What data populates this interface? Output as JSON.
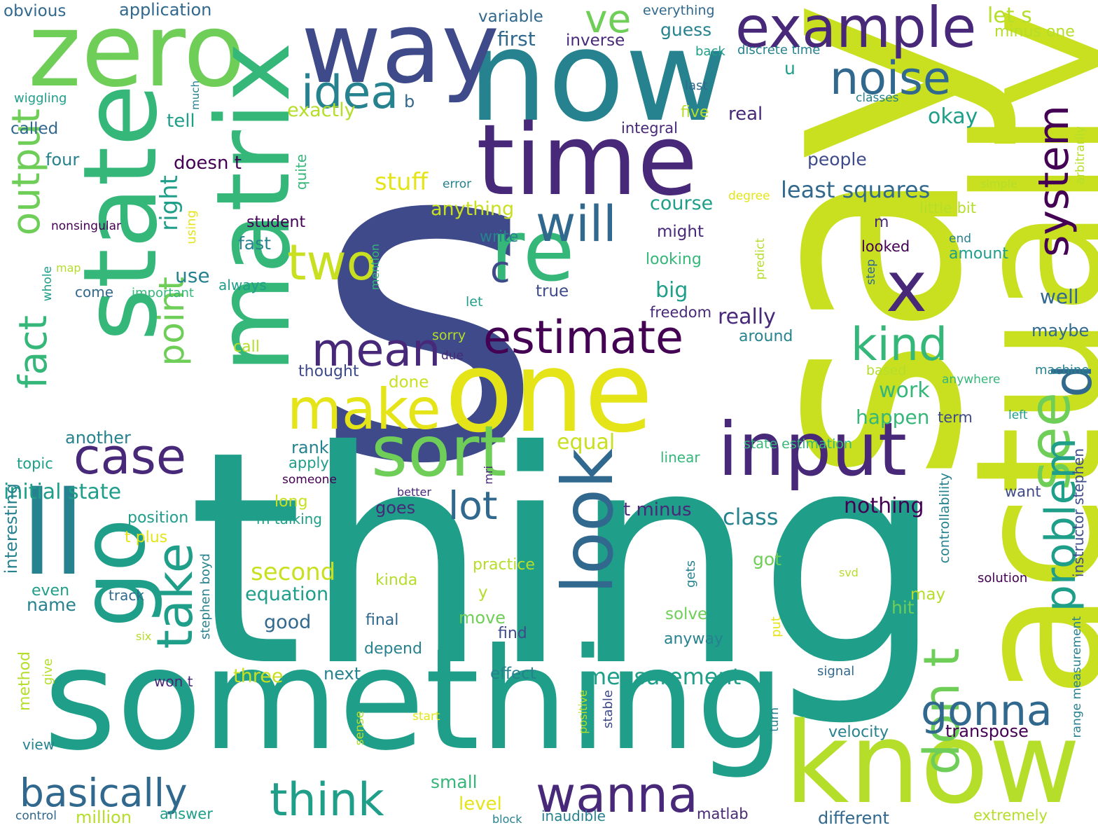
{
  "palette": {
    "indigo": "#3e4a89",
    "purple": "#482878",
    "dark_purple": "#440154",
    "blue": "#31688e",
    "teal": "#26828e",
    "teal_green": "#1f9e89",
    "green": "#35b779",
    "light_green": "#6ece58",
    "lime": "#b5de2b",
    "yellow_lime": "#c8e020",
    "yellow": "#e5e419"
  },
  "words": [
    "s",
    "thing",
    "say",
    "something",
    "now",
    "actually",
    "way",
    "zero",
    "time",
    "one",
    "matrix",
    "state",
    "know",
    "re",
    "ll",
    "go",
    "input",
    "x",
    "example",
    "look",
    "sort",
    "make",
    "noise",
    "kind",
    "idea",
    "estimate",
    "will",
    "mean",
    "case",
    "two",
    "don t",
    "see",
    "take",
    "ve",
    "output",
    "d",
    "problem",
    "system",
    "gonna",
    "wanna",
    "basically",
    "think",
    "lot",
    "point",
    "fact",
    "c",
    "measurement",
    "initial state",
    "least squares",
    "nothing",
    "class",
    "second",
    "equation",
    "t minus",
    "stuff",
    "anything",
    "course",
    "equal",
    "tell",
    "right",
    "use",
    "big",
    "really",
    "okay",
    "work",
    "happen",
    "exactly",
    "first",
    "guess",
    "let s",
    "minus one",
    "inverse",
    "variable",
    "application",
    "obvious",
    "everything",
    "b",
    "u",
    "real",
    "five",
    "integral",
    "back",
    "discrete time",
    "last",
    "classes",
    "called",
    "four",
    "doesn t",
    "quite",
    "error",
    "people",
    "simple",
    "degree",
    "little bit",
    "student",
    "nonsingular",
    "using",
    "m",
    "might",
    "write",
    "fast",
    "looked",
    "looking",
    "end",
    "amount",
    "whole",
    "map",
    "come",
    "important",
    "always",
    "mention",
    "predict",
    "step",
    "true",
    "freedom",
    "well",
    "maybe",
    "let",
    "sorry",
    "around",
    "call",
    "due",
    "thought",
    "based",
    "machine",
    "anywhere",
    "done",
    "another",
    "rank",
    "apply",
    "topic",
    "term",
    "left",
    "state estimation",
    "linear",
    "someone",
    "mri",
    "better",
    "long",
    "goes",
    "want",
    "position",
    "m talking",
    "t plus",
    "practice",
    "got",
    "kinda",
    "interesting",
    "even",
    "name",
    "track",
    "stephen boyd",
    "y",
    "may",
    "svd",
    "solution",
    "final",
    "move",
    "good",
    "hit",
    "controllability",
    "instructor stephen",
    "find",
    "solve",
    "put",
    "gets",
    "six",
    "method",
    "give",
    "three",
    "next",
    "won t",
    "effect",
    "anyway",
    "depend",
    "signal",
    "velocity",
    "transpose",
    "view",
    "start",
    "sense",
    "positive",
    "stable",
    "turn",
    "small",
    "level",
    "million",
    "answer",
    "control",
    "block",
    "inaudible",
    "matlab",
    "different",
    "extremely",
    "range measurement",
    "wiggling",
    "much",
    "arbitrarily"
  ]
}
